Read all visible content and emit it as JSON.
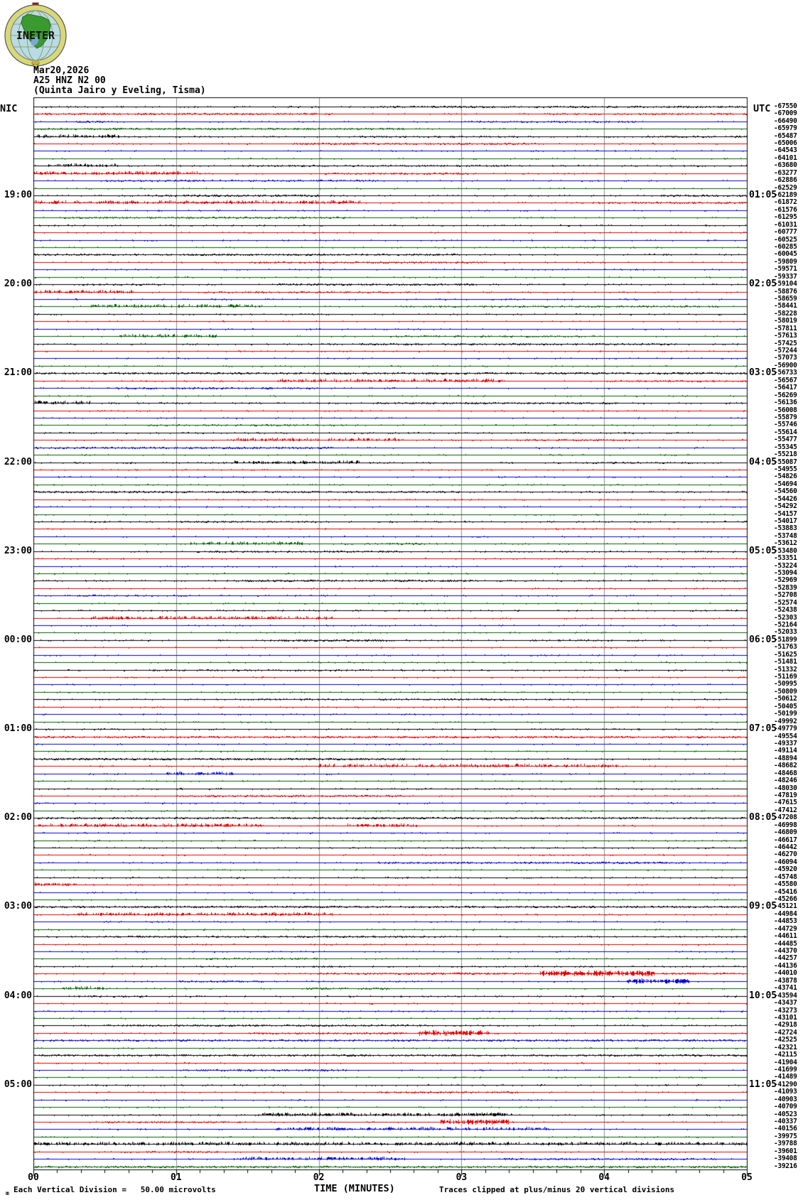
{
  "header": {
    "date": "Mar20,2026",
    "station": "A25 HNZ N2 00",
    "location": "(Quinta Jairo y Eveling, Tisma)",
    "left_label": "NIC",
    "right_label": "UTC",
    "logo_text": "INETER"
  },
  "footer": {
    "micro_mark": "m",
    "scale_note": "Each Vertical Division =   50.00 microvolts",
    "axis_title": "TIME (MINUTES)",
    "clip_note": "Traces clipped at plus/minus 20 vertical divisions"
  },
  "colors": {
    "trace_black": "#000000",
    "trace_red": "#e00000",
    "trace_blue": "#0000cc",
    "trace_green": "#006100",
    "gridline": "#8c8c8c",
    "logo_ring": "#d8d878",
    "logo_globe": "#b8dce4",
    "logo_land": "#3a9a30"
  },
  "chart_data": {
    "type": "line",
    "subtype": "helicorder-seismogram",
    "title": "A25 HNZ N2 00 (Quinta Jairo y Eveling, Tisma) Mar20,2026",
    "xlabel": "TIME (MINUTES)",
    "minutes_per_row": 5,
    "x_axis": {
      "ticks": [
        "00",
        "01",
        "02",
        "03",
        "04",
        "05"
      ],
      "minor_divisions_per_minute": 6,
      "range": [
        0,
        5
      ]
    },
    "grid": "vertical-minute-lines",
    "trace_color_cycle": [
      "#000000",
      "#e00000",
      "#0000cc",
      "#006100"
    ],
    "clip_divisions": 20,
    "microvolts_per_division": 50.0,
    "hour_marks": [
      {
        "row": 12,
        "local": "19:00",
        "utc": "01:05"
      },
      {
        "row": 24,
        "local": "20:00",
        "utc": "02:05"
      },
      {
        "row": 36,
        "local": "21:00",
        "utc": "03:05"
      },
      {
        "row": 48,
        "local": "22:00",
        "utc": "04:05"
      },
      {
        "row": 60,
        "local": "23:00",
        "utc": "05:05"
      },
      {
        "row": 72,
        "local": "00:00",
        "utc": "06:05"
      },
      {
        "row": 84,
        "local": "01:00",
        "utc": "07:05"
      },
      {
        "row": 96,
        "local": "02:00",
        "utc": "08:05"
      },
      {
        "row": 108,
        "local": "03:00",
        "utc": "09:05"
      },
      {
        "row": 120,
        "local": "04:00",
        "utc": "10:05"
      },
      {
        "row": 132,
        "local": "05:00",
        "utc": "11:05"
      }
    ],
    "row_offset_values": [
      -67550,
      -67009,
      -66490,
      -65979,
      -65487,
      -65006,
      -64543,
      -64101,
      -63680,
      -63277,
      -62886,
      -62529,
      -62189,
      -61872,
      -61576,
      -61295,
      -61031,
      -60777,
      -60525,
      -60285,
      -60045,
      -59809,
      -59571,
      -59337,
      -59104,
      -58876,
      -58659,
      -58441,
      -58228,
      -58019,
      -57811,
      -57613,
      -57425,
      -57244,
      -57073,
      -56900,
      -56733,
      -56567,
      -56417,
      -56269,
      -56136,
      -56008,
      -55879,
      -55746,
      -55614,
      -55477,
      -55345,
      -55218,
      -55087,
      -54955,
      -54826,
      -54694,
      -54560,
      -54426,
      -54292,
      -54157,
      -54017,
      -53883,
      -53748,
      -53612,
      -53480,
      -53351,
      -53224,
      -53094,
      -52969,
      -52839,
      -52708,
      -52574,
      -52438,
      -52303,
      -52164,
      -52033,
      -51899,
      -51763,
      -51625,
      -51481,
      -51332,
      -51169,
      -50995,
      -50809,
      -50612,
      -50405,
      -50199,
      -49992,
      -49779,
      -49554,
      -49337,
      -49114,
      -48894,
      -48682,
      -48468,
      -48246,
      -48030,
      -47819,
      -47615,
      -47412,
      -47208,
      -46998,
      -46809,
      -46617,
      -46442,
      -46270,
      -46094,
      -45920,
      -45748,
      -45580,
      -45416,
      -45266,
      -45121,
      -44984,
      -44853,
      -44729,
      -44611,
      -44485,
      -44370,
      -44257,
      -44136,
      -44010,
      -43878,
      -43741,
      -43594,
      -43437,
      -43273,
      -43101,
      -42918,
      -42724,
      -42525,
      -42321,
      -42115,
      -41904,
      -41699,
      -41489,
      -41290,
      -41093,
      -40903,
      -40709,
      -40523,
      -40337,
      -40156,
      -39975,
      -39788,
      -39601,
      -39408,
      -39216
    ],
    "events": [
      {
        "row": 0,
        "bursts": [
          [
            2.4,
            5.0,
            1,
            0.35
          ]
        ]
      },
      {
        "row": 1,
        "bursts": [
          [
            0.0,
            2.1,
            1,
            0.45
          ],
          [
            3.6,
            5.0,
            1,
            0.3
          ]
        ]
      },
      {
        "row": 2,
        "bursts": [
          [
            0.3,
            0.5,
            1,
            0.5
          ],
          [
            3.0,
            4.2,
            1,
            0.3
          ]
        ]
      },
      {
        "row": 3,
        "bursts": [
          [
            0.0,
            2.6,
            1,
            0.45
          ]
        ]
      },
      {
        "row": 4,
        "bursts": [
          [
            0.0,
            0.6,
            2,
            0.5
          ],
          [
            2.2,
            3.4,
            1,
            0.3
          ],
          [
            4.3,
            5.0,
            1,
            0.4
          ]
        ]
      },
      {
        "row": 5,
        "bursts": [
          [
            1.8,
            3.5,
            1,
            0.45
          ]
        ]
      },
      {
        "row": 8,
        "bursts": [
          [
            0.1,
            0.6,
            2,
            0.6
          ],
          [
            1.5,
            3.2,
            1,
            0.3
          ]
        ]
      },
      {
        "row": 9,
        "bursts": [
          [
            0.0,
            1.2,
            2,
            0.55
          ],
          [
            2.0,
            3.1,
            1,
            0.4
          ]
        ]
      },
      {
        "row": 10,
        "bursts": [
          [
            0.5,
            2.4,
            1,
            0.35
          ]
        ]
      },
      {
        "row": 12,
        "bursts": [
          [
            0.8,
            2.0,
            1,
            0.5
          ],
          [
            4.4,
            5.0,
            1,
            0.5
          ]
        ]
      },
      {
        "row": 13,
        "bursts": [
          [
            0.0,
            2.3,
            2,
            0.55
          ],
          [
            3.9,
            5.0,
            1,
            0.35
          ]
        ]
      },
      {
        "row": 15,
        "bursts": [
          [
            0.2,
            2.2,
            1,
            0.4
          ]
        ]
      },
      {
        "row": 20,
        "bursts": [
          [
            0.0,
            3.0,
            1,
            0.4
          ]
        ]
      },
      {
        "row": 21,
        "bursts": [
          [
            1.5,
            3.2,
            1,
            0.35
          ]
        ]
      },
      {
        "row": 24,
        "bursts": [
          [
            1.7,
            3.1,
            1,
            0.5
          ],
          [
            0.3,
            0.9,
            1,
            0.3
          ]
        ]
      },
      {
        "row": 25,
        "bursts": [
          [
            0.0,
            0.7,
            2,
            0.6
          ],
          [
            1.2,
            2.6,
            1,
            0.35
          ]
        ]
      },
      {
        "row": 27,
        "bursts": [
          [
            0.4,
            1.6,
            2,
            0.5
          ],
          [
            2.6,
            4.8,
            1,
            0.35
          ]
        ]
      },
      {
        "row": 31,
        "bursts": [
          [
            0.6,
            1.3,
            2,
            0.5
          ],
          [
            2.5,
            4.0,
            1,
            0.3
          ]
        ]
      },
      {
        "row": 32,
        "bursts": [
          [
            2.0,
            4.5,
            1,
            0.35
          ]
        ]
      },
      {
        "row": 36,
        "bursts": [
          [
            0.0,
            5.0,
            1,
            0.45
          ]
        ]
      },
      {
        "row": 37,
        "bursts": [
          [
            1.7,
            3.3,
            2,
            0.5
          ],
          [
            4.0,
            5.0,
            1,
            0.3
          ]
        ]
      },
      {
        "row": 38,
        "bursts": [
          [
            0.5,
            2.0,
            1,
            0.3
          ]
        ]
      },
      {
        "row": 40,
        "bursts": [
          [
            0.0,
            0.4,
            2,
            0.5
          ],
          [
            2.4,
            4.1,
            1,
            0.4
          ]
        ]
      },
      {
        "row": 43,
        "bursts": [
          [
            0.8,
            2.2,
            1,
            0.3
          ]
        ]
      },
      {
        "row": 45,
        "bursts": [
          [
            1.4,
            2.6,
            2,
            0.45
          ],
          [
            3.3,
            4.2,
            1,
            0.3
          ]
        ]
      },
      {
        "row": 46,
        "bursts": [
          [
            0.0,
            2.1,
            1,
            0.45
          ]
        ]
      },
      {
        "row": 48,
        "bursts": [
          [
            1.4,
            2.3,
            2,
            0.5
          ],
          [
            3.8,
            4.6,
            1,
            0.3
          ]
        ]
      },
      {
        "row": 52,
        "bursts": [
          [
            0.0,
            3.0,
            1,
            0.4
          ]
        ]
      },
      {
        "row": 56,
        "bursts": [
          [
            1.0,
            2.0,
            1,
            0.3
          ]
        ]
      },
      {
        "row": 59,
        "bursts": [
          [
            1.1,
            1.9,
            2,
            0.5
          ],
          [
            2.3,
            2.8,
            1,
            0.4
          ]
        ]
      },
      {
        "row": 60,
        "bursts": [
          [
            1.2,
            2.6,
            1,
            0.35
          ]
        ]
      },
      {
        "row": 64,
        "bursts": [
          [
            1.4,
            3.1,
            1,
            0.5
          ]
        ]
      },
      {
        "row": 66,
        "bursts": [
          [
            0.3,
            1.1,
            1,
            0.3
          ]
        ]
      },
      {
        "row": 69,
        "bursts": [
          [
            0.4,
            2.1,
            2,
            0.5
          ]
        ]
      },
      {
        "row": 72,
        "bursts": [
          [
            1.7,
            2.5,
            1,
            0.5
          ],
          [
            3.5,
            4.3,
            1,
            0.3
          ]
        ]
      },
      {
        "row": 76,
        "bursts": [
          [
            0.8,
            2.4,
            1,
            0.3
          ]
        ]
      },
      {
        "row": 80,
        "bursts": [
          [
            1.5,
            3.5,
            1,
            0.3
          ]
        ]
      },
      {
        "row": 85,
        "bursts": [
          [
            0.0,
            5.0,
            1,
            0.4
          ],
          [
            0.3,
            1.5,
            2,
            0.4
          ]
        ]
      },
      {
        "row": 88,
        "bursts": [
          [
            0.0,
            2.6,
            1,
            0.5
          ]
        ]
      },
      {
        "row": 89,
        "bursts": [
          [
            2.0,
            4.1,
            2,
            0.45
          ]
        ]
      },
      {
        "row": 90,
        "bursts": [
          [
            0.9,
            1.4,
            2,
            0.5
          ]
        ]
      },
      {
        "row": 93,
        "bursts": [
          [
            1.0,
            2.6,
            1,
            0.45
          ]
        ]
      },
      {
        "row": 96,
        "bursts": [
          [
            0.0,
            5.0,
            1,
            0.4
          ]
        ]
      },
      {
        "row": 97,
        "bursts": [
          [
            0.0,
            1.6,
            2,
            0.5
          ],
          [
            2.2,
            2.7,
            2,
            0.5
          ]
        ]
      },
      {
        "row": 102,
        "bursts": [
          [
            2.4,
            4.6,
            1,
            0.45
          ]
        ]
      },
      {
        "row": 105,
        "bursts": [
          [
            0.0,
            0.3,
            2,
            0.5
          ]
        ]
      },
      {
        "row": 108,
        "bursts": [
          [
            0.0,
            5.0,
            1,
            0.45
          ]
        ]
      },
      {
        "row": 109,
        "bursts": [
          [
            0.3,
            2.1,
            2,
            0.5
          ]
        ]
      },
      {
        "row": 112,
        "bursts": [
          [
            0.5,
            2.9,
            1,
            0.4
          ]
        ]
      },
      {
        "row": 115,
        "bursts": [
          [
            1.2,
            2.0,
            1,
            0.35
          ]
        ]
      },
      {
        "row": 117,
        "bursts": [
          [
            3.55,
            4.35,
            3,
            0.85
          ],
          [
            2.0,
            3.5,
            1,
            0.45
          ],
          [
            4.4,
            5.0,
            1,
            0.45
          ]
        ]
      },
      {
        "row": 118,
        "bursts": [
          [
            4.15,
            4.6,
            3,
            0.8
          ],
          [
            1.0,
            1.6,
            1,
            0.35
          ]
        ]
      },
      {
        "row": 119,
        "bursts": [
          [
            0.2,
            0.5,
            2,
            0.5
          ],
          [
            1.9,
            2.5,
            1,
            0.45
          ]
        ]
      },
      {
        "row": 120,
        "bursts": [
          [
            0.3,
            0.8,
            1,
            0.4
          ]
        ]
      },
      {
        "row": 124,
        "bursts": [
          [
            0.5,
            2.8,
            1,
            0.4
          ]
        ]
      },
      {
        "row": 125,
        "bursts": [
          [
            2.7,
            3.2,
            3,
            0.8
          ],
          [
            1.5,
            2.6,
            1,
            0.4
          ]
        ]
      },
      {
        "row": 126,
        "bursts": [
          [
            0.0,
            5.0,
            1,
            0.4
          ],
          [
            2.0,
            2.7,
            2,
            0.6
          ]
        ]
      },
      {
        "row": 128,
        "bursts": [
          [
            0.0,
            5.0,
            1,
            0.4
          ]
        ]
      },
      {
        "row": 130,
        "bursts": [
          [
            1.0,
            2.2,
            1,
            0.35
          ]
        ]
      },
      {
        "row": 133,
        "bursts": [
          [
            2.4,
            3.4,
            1,
            0.4
          ]
        ]
      },
      {
        "row": 136,
        "bursts": [
          [
            1.6,
            3.4,
            2,
            0.6
          ]
        ]
      },
      {
        "row": 137,
        "bursts": [
          [
            2.85,
            3.35,
            3,
            0.8
          ],
          [
            0.5,
            1.5,
            1,
            0.35
          ]
        ]
      },
      {
        "row": 138,
        "bursts": [
          [
            1.7,
            3.6,
            2,
            0.5
          ]
        ]
      },
      {
        "row": 140,
        "bursts": [
          [
            0.0,
            5.0,
            2,
            0.55
          ]
        ]
      },
      {
        "row": 141,
        "bursts": [
          [
            0.6,
            1.3,
            1,
            0.4
          ]
        ]
      },
      {
        "row": 142,
        "bursts": [
          [
            1.4,
            2.6,
            2,
            0.55
          ],
          [
            3.2,
            4.8,
            1,
            0.4
          ]
        ]
      },
      {
        "row": 143,
        "bursts": [
          [
            0.0,
            5.0,
            1,
            0.45
          ],
          [
            2.1,
            2.5,
            2,
            0.6
          ],
          [
            3.9,
            4.7,
            2,
            0.5
          ]
        ]
      }
    ]
  }
}
